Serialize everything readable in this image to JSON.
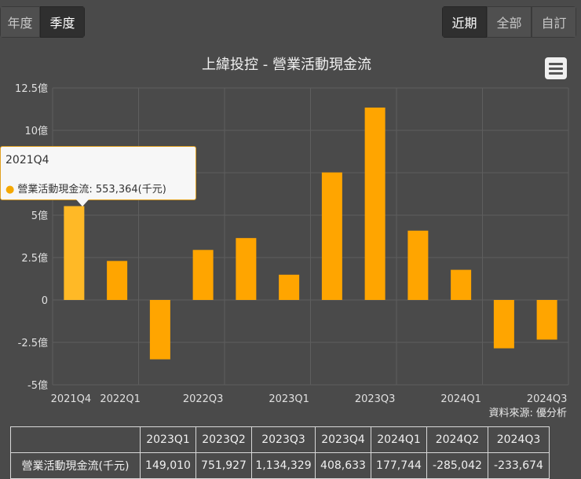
{
  "toggles": {
    "period": [
      "年度",
      "季度"
    ],
    "period_active": 1,
    "range": [
      "近期",
      "全部",
      "自訂"
    ],
    "range_active": 0
  },
  "source_note": "資料來源: 優分析",
  "menu_icon": "hamburger-menu-icon",
  "colors": {
    "bar": "#ffa500",
    "bar_highlight": "#ffb926",
    "background": "#4a4a4a",
    "grid": "#5e5e5e"
  },
  "tooltip": {
    "title": "2021Q4",
    "series_label": "營業活動現金流",
    "value_text": "553,364(千元)"
  },
  "chart_data": {
    "type": "bar",
    "title": "上緯投控 - 營業活動現金流",
    "categories": [
      "2021Q4",
      "2022Q1",
      "2022Q2",
      "2022Q3",
      "2022Q4",
      "2023Q1",
      "2023Q2",
      "2023Q3",
      "2023Q4",
      "2024Q1",
      "2024Q2",
      "2024Q3"
    ],
    "x_tick_labels": [
      "2021Q4",
      "2022Q1",
      "",
      "2022Q3",
      "",
      "2023Q1",
      "",
      "2023Q3",
      "",
      "2024Q1",
      "",
      "2024Q3"
    ],
    "series": [
      {
        "name": "營業活動現金流",
        "unit": "千元",
        "values": [
          553364,
          230000,
          -350000,
          295000,
          365000,
          149010,
          751927,
          1134329,
          408633,
          177744,
          -285042,
          -233674
        ]
      }
    ],
    "y_tick_labels": [
      "-5億",
      "-2.5億",
      "0",
      "2.5億",
      "5億",
      "7.5億",
      "10億",
      "12.5億"
    ],
    "y_ticks": [
      -500000,
      -250000,
      0,
      250000,
      500000,
      750000,
      1000000,
      1250000
    ],
    "ylim": [
      -500000,
      1250000
    ],
    "grid": true,
    "highlight_index": 0
  },
  "table": {
    "headers": [
      "",
      "2023Q1",
      "2023Q2",
      "2023Q3",
      "2023Q4",
      "2024Q1",
      "2024Q2",
      "2024Q3"
    ],
    "rows": [
      [
        "營業活動現金流(千元)",
        "149,010",
        "751,927",
        "1,134,329",
        "408,633",
        "177,744",
        "-285,042",
        "-233,674"
      ]
    ]
  }
}
